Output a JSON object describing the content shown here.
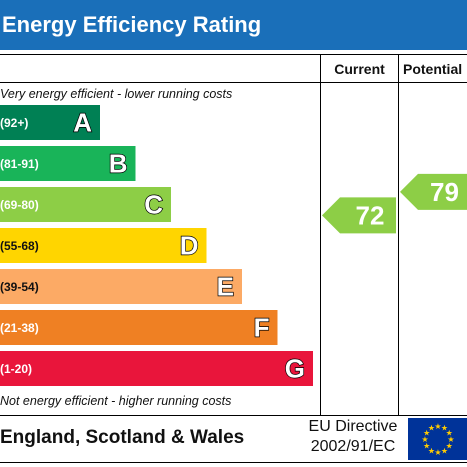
{
  "title": "Energy Efficiency Rating",
  "columns": {
    "current": "Current",
    "potential": "Potential"
  },
  "notes": {
    "top": "Very energy efficient - lower running costs",
    "bottom": "Not energy efficient - higher running costs"
  },
  "footer": {
    "country": "England, Scotland & Wales",
    "directive_line1": "EU Directive",
    "directive_line2": "2002/91/EC"
  },
  "chart_data": {
    "type": "bar",
    "bands": [
      {
        "letter": "A",
        "range": "(92+)",
        "color": "#008054"
      },
      {
        "letter": "B",
        "range": "(81-91)",
        "color": "#19b459"
      },
      {
        "letter": "C",
        "range": "(69-80)",
        "color": "#8dce46"
      },
      {
        "letter": "D",
        "range": "(55-68)",
        "color": "#ffd500"
      },
      {
        "letter": "E",
        "range": "(39-54)",
        "color": "#fcaa65"
      },
      {
        "letter": "F",
        "range": "(21-38)",
        "color": "#ef8023"
      },
      {
        "letter": "G",
        "range": "(1-20)",
        "color": "#e9153b"
      }
    ],
    "current": {
      "value": 72,
      "band": "C",
      "color": "#8dce46"
    },
    "potential": {
      "value": 79,
      "band": "C",
      "color": "#8dce46"
    }
  }
}
